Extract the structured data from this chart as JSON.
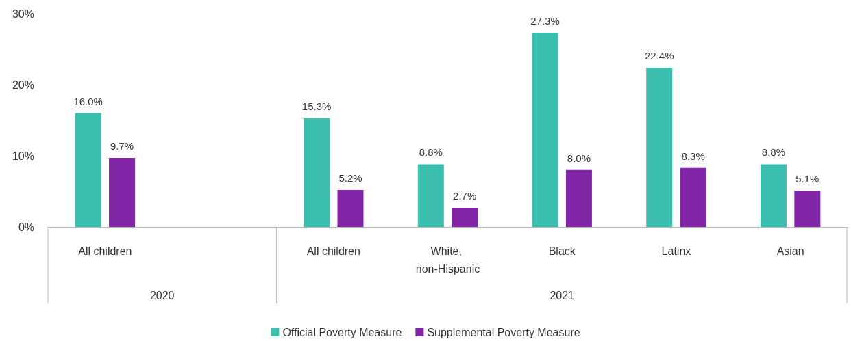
{
  "chart_data": {
    "type": "bar",
    "categories": [
      "All children",
      null,
      "All children",
      "White, non-Hispanic",
      "Black",
      "Latinx",
      "Asian"
    ],
    "series": [
      {
        "name": "Official Poverty Measure",
        "color": "#3dbfb0",
        "values": [
          16.0,
          null,
          15.3,
          8.8,
          27.3,
          22.4,
          8.8
        ],
        "value_labels": [
          "16.0%",
          null,
          "15.3%",
          "8.8%",
          "27.3%",
          "22.4%",
          "8.8%"
        ]
      },
      {
        "name": "Supplemental Poverty Measure",
        "color": "#8226a8",
        "values": [
          9.7,
          null,
          5.2,
          2.7,
          8.0,
          8.3,
          5.1
        ],
        "value_labels": [
          "9.7%",
          null,
          "5.2%",
          "2.7%",
          "8.0%",
          "8.3%",
          "5.1%"
        ]
      }
    ],
    "ylim": [
      0,
      30
    ],
    "yticks": [
      {
        "value": 0,
        "label": "0%"
      },
      {
        "value": 10,
        "label": "10%"
      },
      {
        "value": 20,
        "label": "20%"
      },
      {
        "value": 30,
        "label": "30%"
      }
    ],
    "grid": false,
    "legend": "bottom",
    "annotations": [
      "2020",
      "2021"
    ]
  }
}
